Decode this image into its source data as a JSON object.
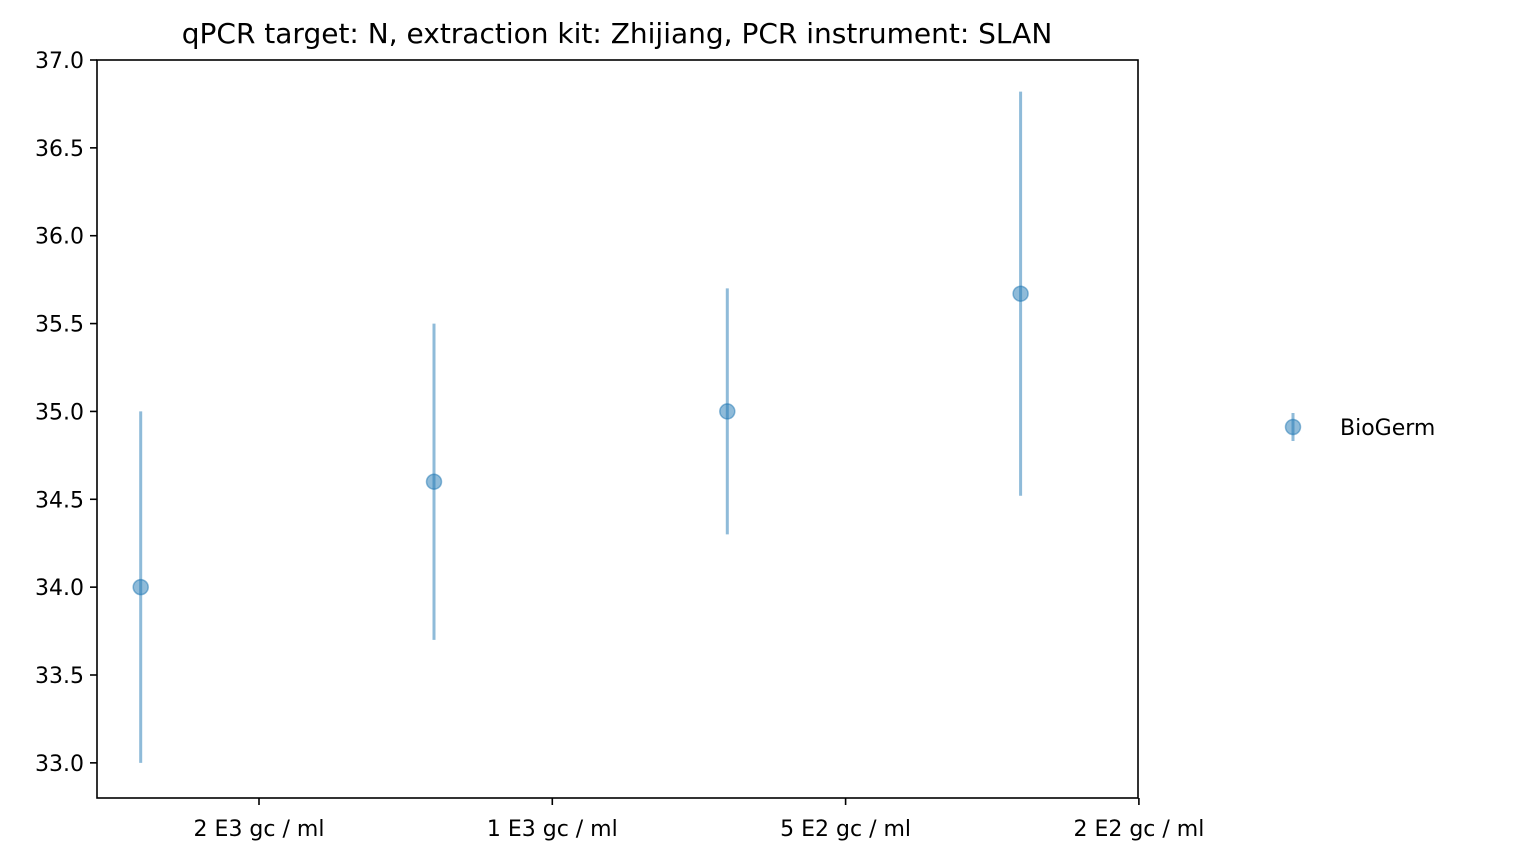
{
  "chart_data": {
    "type": "scatter",
    "title": "qPCR target: N, extraction kit: Zhijiang, PCR instrument: SLAN",
    "xlabel": "",
    "ylabel": "",
    "ylim": [
      32.8,
      37.0
    ],
    "y_ticks": [
      "33.0",
      "33.5",
      "34.0",
      "34.5",
      "35.0",
      "35.5",
      "36.0",
      "36.5",
      "37.0"
    ],
    "x_tick_labels": [
      "2 E3 gc / ml",
      "1 E3 gc / ml",
      "5 E2 gc / ml",
      "2 E2 gc / ml"
    ],
    "grid": false,
    "legend_position": "right",
    "series": [
      {
        "name": "BioGerm",
        "color": "#1f77b4",
        "points": [
          {
            "x": "2 E3 gc / ml",
            "y": 34.0,
            "y_low": 33.0,
            "y_high": 35.0
          },
          {
            "x": "1 E3 gc / ml",
            "y": 34.6,
            "y_low": 33.7,
            "y_high": 35.5
          },
          {
            "x": "5 E2 gc / ml",
            "y": 35.0,
            "y_low": 34.3,
            "y_high": 35.7
          },
          {
            "x": "2 E2 gc / ml",
            "y": 35.67,
            "y_low": 34.52,
            "y_high": 36.82
          }
        ]
      }
    ]
  }
}
